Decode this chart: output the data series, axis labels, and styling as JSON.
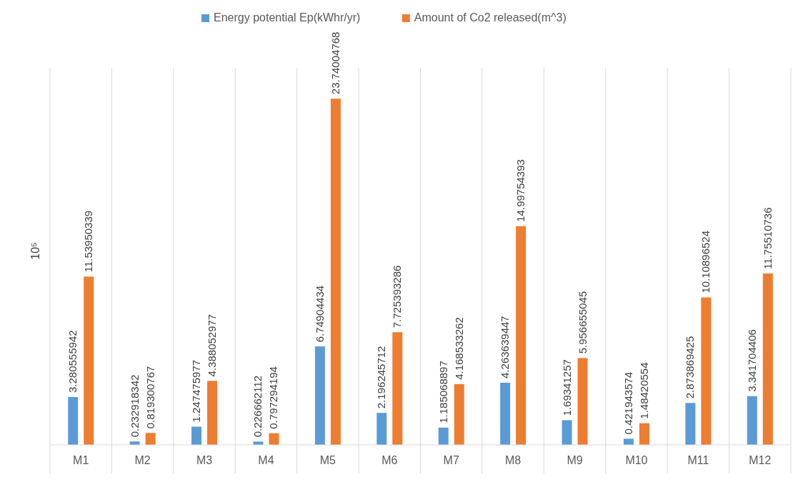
{
  "chart_data": {
    "type": "bar",
    "ylabel": "10⁵",
    "categories": [
      "M1",
      "M2",
      "M3",
      "M4",
      "M5",
      "M6",
      "M7",
      "M8",
      "M9",
      "M10",
      "M11",
      "M12"
    ],
    "series": [
      {
        "name": "Energy potential Ep(kWhr/yr)",
        "color": "#5b9bd5",
        "values": [
          3.280555942,
          0.232918342,
          1.247475977,
          0.226662112,
          6.74904434,
          2.196245712,
          1.185068897,
          4.263639447,
          1.69341257,
          0.421943574,
          2.873869425,
          3.341704406
        ]
      },
      {
        "name": "Amount of Co2 released(m^3)",
        "color": "#ed7d31",
        "values": [
          11.53950339,
          0.819300767,
          4.388052977,
          0.797294194,
          23.74004768,
          7.725393286,
          4.168533262,
          14.99754393,
          5.956655045,
          1.48420554,
          10.10896524,
          11.75510736
        ]
      }
    ],
    "data_labels": true,
    "grid": "x",
    "legend": "top"
  }
}
